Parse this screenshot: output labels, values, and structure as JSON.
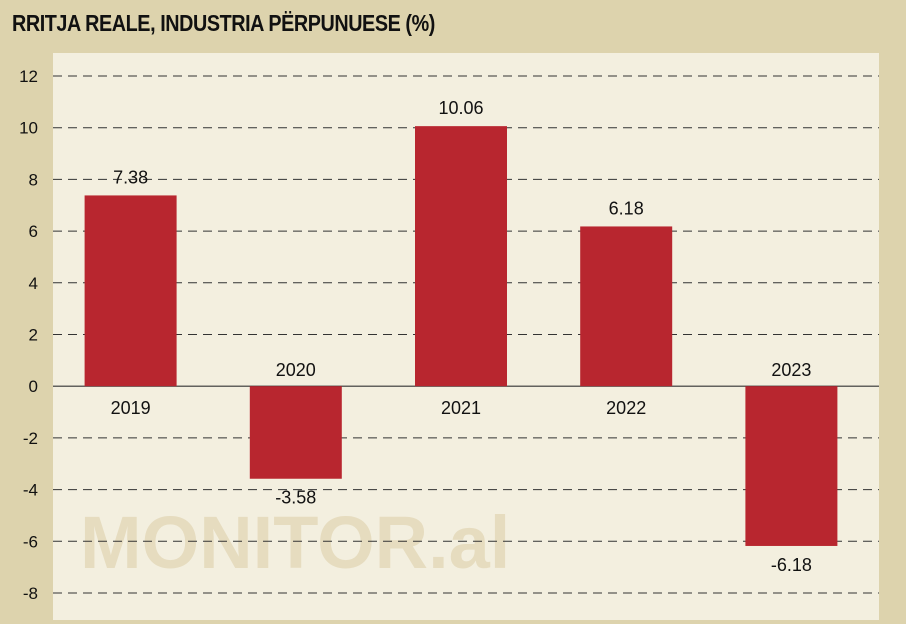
{
  "chart_data": {
    "type": "bar",
    "title": "RRITJA REALE, INDUSTRIA PËRPUNUESE (%)",
    "categories": [
      "2019",
      "2020",
      "2021",
      "2022",
      "2023"
    ],
    "values": [
      7.38,
      -3.58,
      10.06,
      6.18,
      -6.18
    ],
    "value_labels": [
      "7.38",
      "-3.58",
      "10.06",
      "6.18",
      "-6.18"
    ],
    "ylim": [
      -8,
      12
    ],
    "yticks": [
      12,
      10,
      8,
      6,
      4,
      2,
      0,
      -2,
      -4,
      -6,
      -8
    ],
    "grid": true,
    "bar_color": "#b8262f",
    "watermark": "MONITOR.al"
  }
}
